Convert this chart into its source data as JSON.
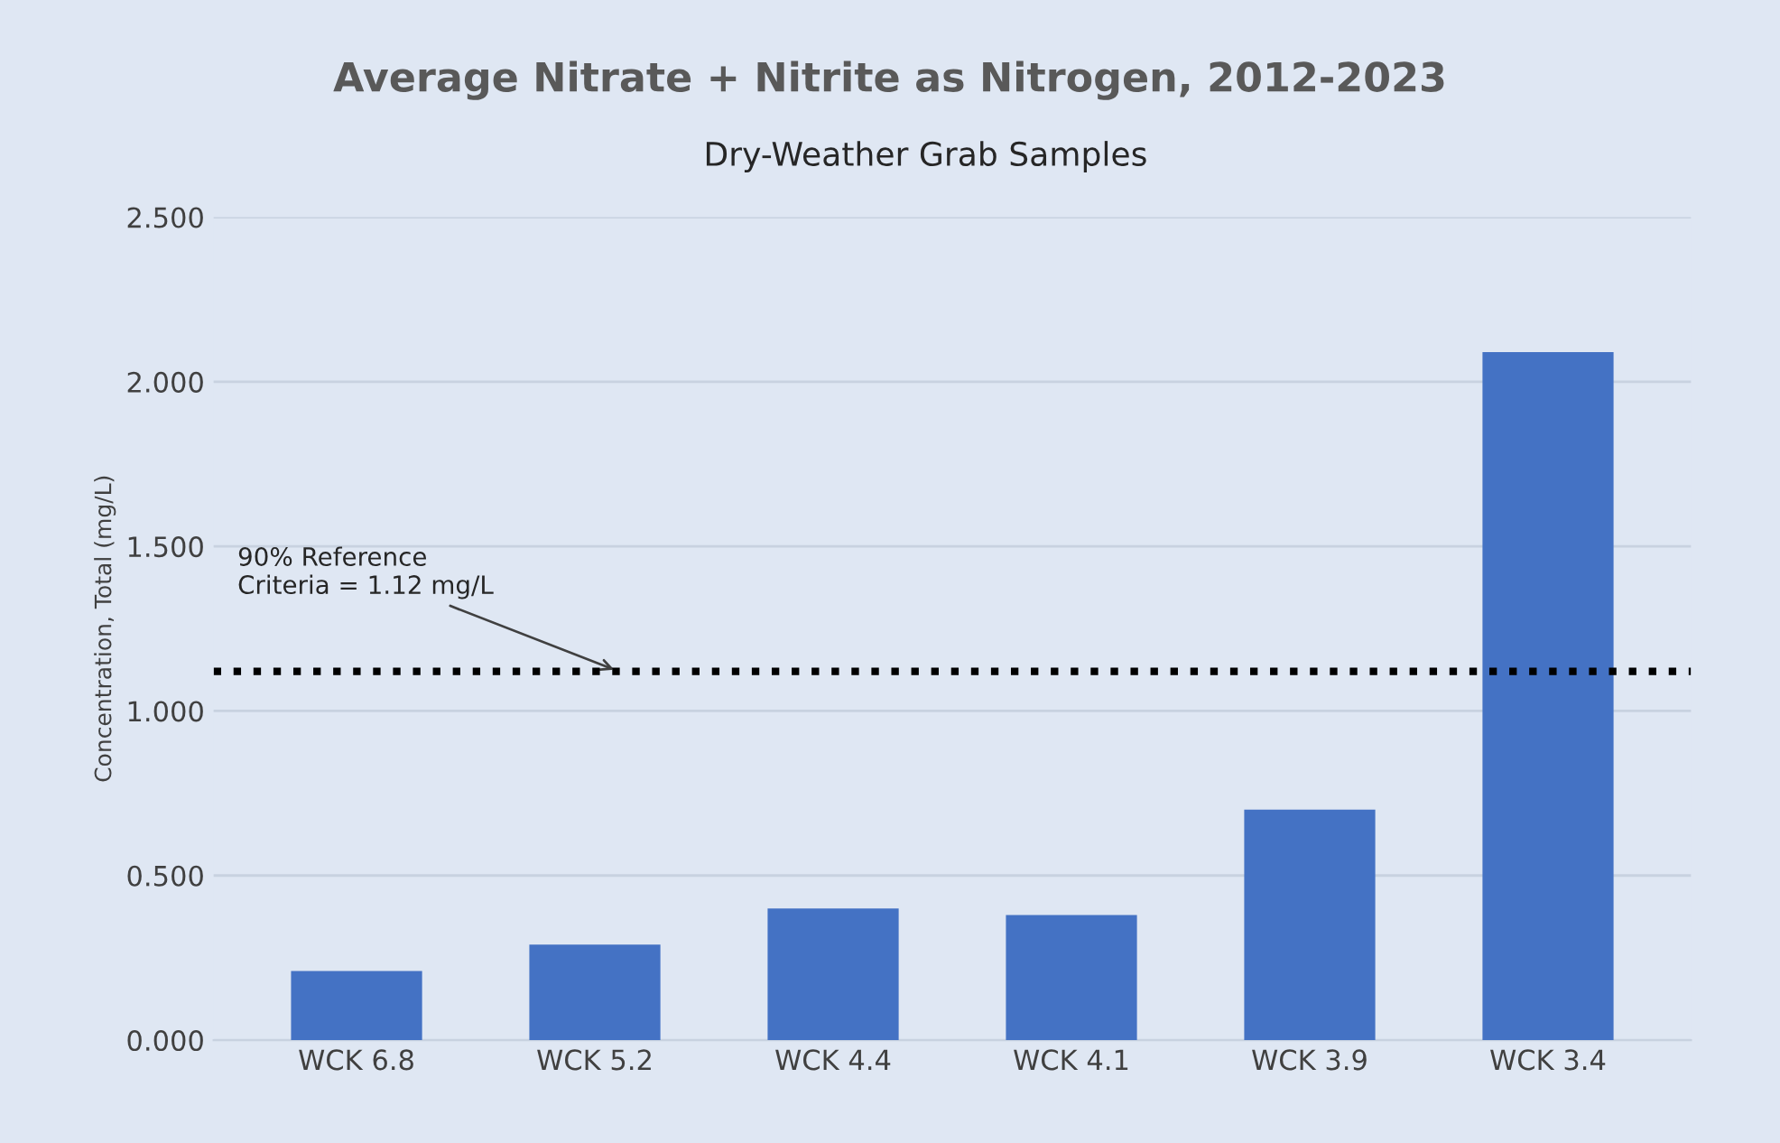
{
  "chart_data": {
    "type": "bar",
    "title": "Average Nitrate + Nitrite as Nitrogen, 2012-2023",
    "subtitle": "Dry-Weather Grab Samples",
    "ylabel": "Concentration, Total (mg/L)",
    "categories": [
      "WCK 6.8",
      "WCK 5.2",
      "WCK 4.4",
      "WCK 4.1",
      "WCK 3.9",
      "WCK 3.4"
    ],
    "values": [
      0.21,
      0.29,
      0.4,
      0.38,
      0.7,
      2.09
    ],
    "color": "#4472c4",
    "ylim": [
      0,
      2.5
    ],
    "yticks": [
      {
        "value": 0,
        "label": "0.000"
      },
      {
        "value": 0.5,
        "label": "0.500"
      },
      {
        "value": 1.0,
        "label": "1.000"
      },
      {
        "value": 1.5,
        "label": "1.500"
      },
      {
        "value": 2.0,
        "label": "2.000"
      },
      {
        "value": 2.5,
        "label": "2.500"
      }
    ],
    "grid": "y",
    "legend": false,
    "ref_lines": [
      {
        "axis": "y",
        "value": 1.12,
        "label": "90% Reference\nCriteria = 1.12 mg/L",
        "color": "#000000",
        "line_style": "dotted"
      }
    ]
  }
}
